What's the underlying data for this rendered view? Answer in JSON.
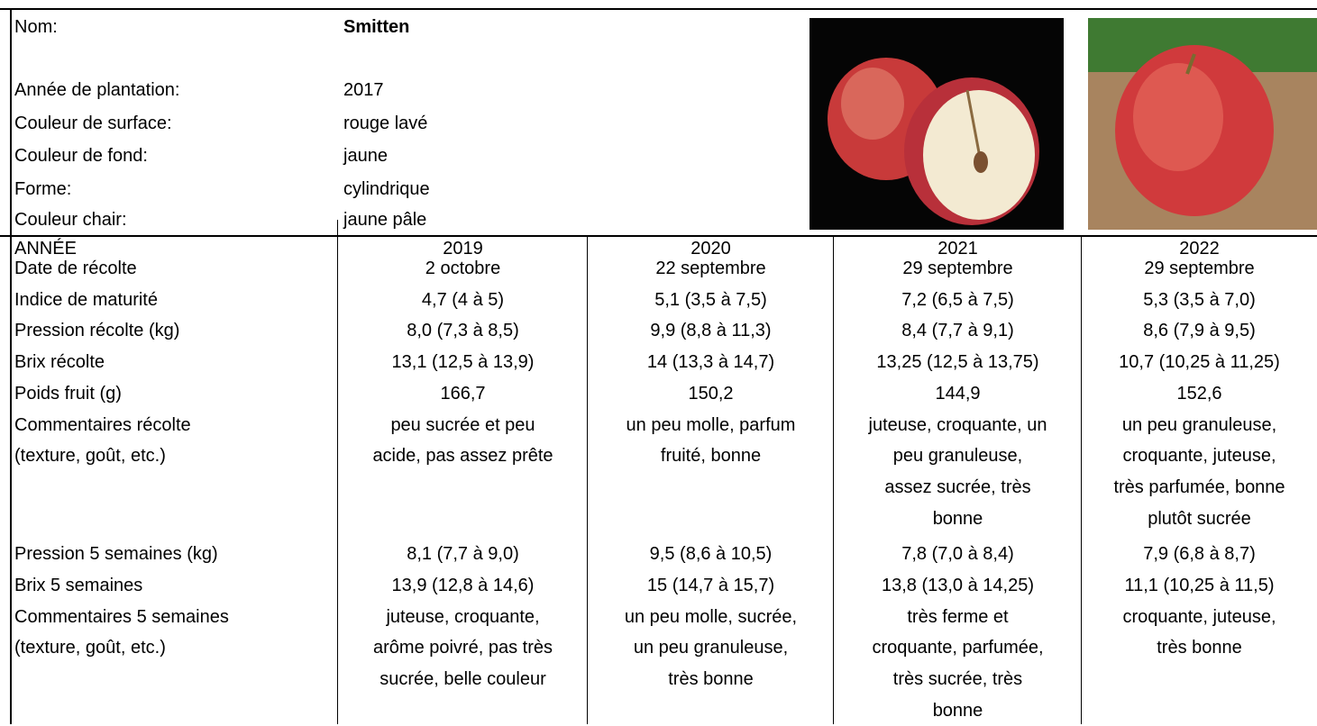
{
  "header": {
    "fields": [
      {
        "label": "Nom:",
        "value": "Smitten"
      },
      {
        "label": "Année de plantation:",
        "value": "2017"
      },
      {
        "label": "Couleur de surface:",
        "value": "rouge lavé"
      },
      {
        "label": "Couleur de fond:",
        "value": "jaune"
      },
      {
        "label": "Forme:",
        "value": "cylindrique"
      },
      {
        "label": "Couleur chair:",
        "value": "jaune pâle"
      }
    ]
  },
  "table": {
    "header": [
      "ANNÉE",
      "2019",
      "2020",
      "2021",
      "2022"
    ],
    "rows": [
      {
        "label": [
          "Date de récolte"
        ],
        "cells": [
          [
            "2 octobre"
          ],
          [
            "22 septembre"
          ],
          [
            "29 septembre"
          ],
          [
            "29 septembre"
          ]
        ]
      },
      {
        "label": [
          "Indice de maturité"
        ],
        "cells": [
          [
            "4,7 (4 à 5)"
          ],
          [
            "5,1 (3,5 à 7,5)"
          ],
          [
            "7,2 (6,5 à 7,5)"
          ],
          [
            "5,3 (3,5 à 7,0)"
          ]
        ]
      },
      {
        "label": [
          "Pression récolte (kg)"
        ],
        "cells": [
          [
            "8,0 (7,3 à 8,5)"
          ],
          [
            "9,9 (8,8 à 11,3)"
          ],
          [
            "8,4 (7,7 à 9,1)"
          ],
          [
            "8,6 (7,9 à 9,5)"
          ]
        ]
      },
      {
        "label": [
          "Brix récolte"
        ],
        "cells": [
          [
            "13,1 (12,5 à 13,9)"
          ],
          [
            "14 (13,3 à 14,7)"
          ],
          [
            "13,25 (12,5 à 13,75)"
          ],
          [
            "10,7 (10,25 à 11,25)"
          ]
        ]
      },
      {
        "label": [
          "Poids fruit (g)"
        ],
        "cells": [
          [
            "166,7"
          ],
          [
            "150,2"
          ],
          [
            "144,9"
          ],
          [
            "152,6"
          ]
        ]
      },
      {
        "label": [
          "Commentaires récolte",
          "(texture, goût, etc.)"
        ],
        "cells": [
          [
            "peu sucrée et peu",
            "acide, pas assez prête"
          ],
          [
            "un peu molle, parfum",
            "fruité, bonne"
          ],
          [
            "juteuse, croquante, un",
            "peu granuleuse,",
            "assez sucrée, très",
            "bonne"
          ],
          [
            "un peu granuleuse,",
            "croquante, juteuse,",
            "très parfumée, bonne",
            "plutôt sucrée"
          ]
        ]
      },
      {
        "label": [
          "Pression 5 semaines (kg)"
        ],
        "cells": [
          [
            "8,1 (7,7 à 9,0)"
          ],
          [
            "9,5 (8,6 à 10,5)"
          ],
          [
            "7,8 (7,0 à 8,4)"
          ],
          [
            "7,9 (6,8 à 8,7)"
          ]
        ]
      },
      {
        "label": [
          "Brix 5 semaines"
        ],
        "cells": [
          [
            "13,9 (12,8 à 14,6)"
          ],
          [
            "15 (14,7 à 15,7)"
          ],
          [
            "13,8 (13,0 à 14,25)"
          ],
          [
            "11,1 (10,25 à 11,5)"
          ]
        ]
      },
      {
        "label": [
          "Commentaires 5 semaines",
          "(texture, goût, etc.)"
        ],
        "cells": [
          [
            "juteuse, croquante,",
            "arôme poivré, pas très",
            "sucrée, belle couleur"
          ],
          [
            "un peu molle, sucrée,",
            "un peu granuleuse,",
            "très bonne"
          ],
          [
            "très ferme et",
            "croquante, parfumée,",
            "très sucrée, très",
            "bonne"
          ],
          [
            "croquante, juteuse,",
            "très bonne"
          ]
        ]
      }
    ]
  }
}
